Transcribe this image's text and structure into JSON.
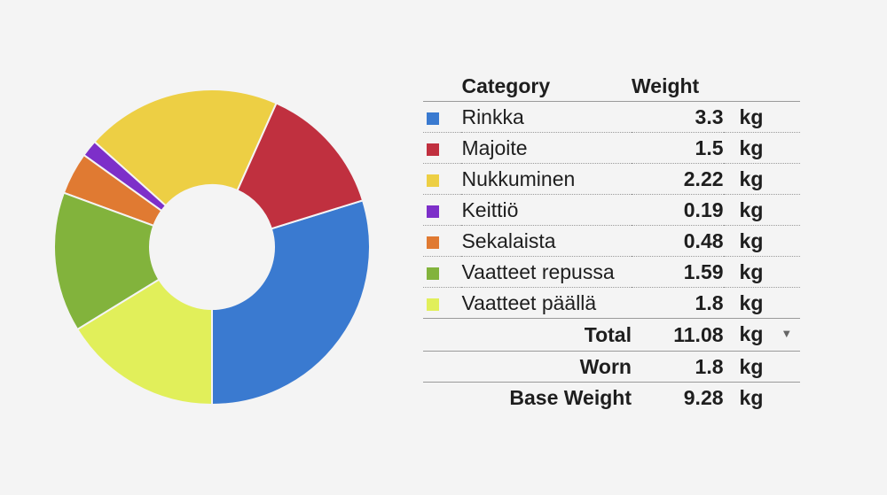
{
  "chart_data": {
    "type": "pie",
    "donut": true,
    "categories": [
      "Rinkka",
      "Majoite",
      "Nukkuminen",
      "Keittiö",
      "Sekalaista",
      "Vaatteet repussa",
      "Vaatteet päällä"
    ],
    "values": [
      3.3,
      1.5,
      2.22,
      0.19,
      0.48,
      1.59,
      1.8
    ],
    "colors": [
      "#3a7ad0",
      "#c0303f",
      "#edcf44",
      "#7d2fc9",
      "#e07a32",
      "#82b33c",
      "#e1ef5a"
    ],
    "start_angle_deg": 90,
    "direction": "clockwise"
  },
  "table": {
    "header_category": "Category",
    "header_weight": "Weight",
    "rows": [
      {
        "name": "Rinkka",
        "weight": "3.3",
        "unit": "kg"
      },
      {
        "name": "Majoite",
        "weight": "1.5",
        "unit": "kg"
      },
      {
        "name": "Nukkuminen",
        "weight": "2.22",
        "unit": "kg"
      },
      {
        "name": "Keittiö",
        "weight": "0.19",
        "unit": "kg"
      },
      {
        "name": "Sekalaista",
        "weight": "0.48",
        "unit": "kg"
      },
      {
        "name": "Vaatteet repussa",
        "weight": "1.59",
        "unit": "kg"
      },
      {
        "name": "Vaatteet päällä",
        "weight": "1.8",
        "unit": "kg"
      }
    ],
    "total": {
      "label": "Total",
      "weight": "11.08",
      "unit": "kg",
      "caret": "▼"
    },
    "worn": {
      "label": "Worn",
      "weight": "1.8",
      "unit": "kg"
    },
    "base": {
      "label": "Base Weight",
      "weight": "9.28",
      "unit": "kg"
    }
  }
}
